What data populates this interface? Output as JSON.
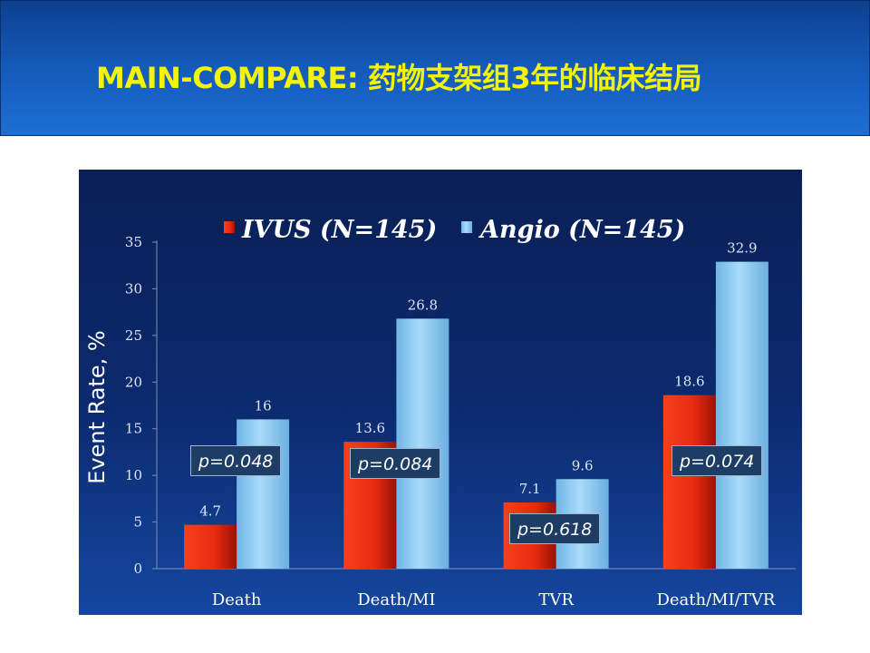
{
  "header": {
    "title": "MAIN-COMPARE: 药物支架组3年的临床结局"
  },
  "colors": {
    "ivus": "#e62a12",
    "angio": "#7fc4ee",
    "title": "#f4f400"
  },
  "chart_data": {
    "type": "bar",
    "categories": [
      "Death",
      "Death/MI",
      "TVR",
      "Death/MI/TVR"
    ],
    "series": [
      {
        "name": "IVUS (N=145)",
        "values": [
          4.7,
          13.6,
          7.1,
          18.6
        ]
      },
      {
        "name": "Angio (N=145)",
        "values": [
          16,
          26.8,
          9.6,
          32.9
        ]
      }
    ],
    "value_labels": [
      [
        "4.7",
        "13.6",
        "7.1",
        "18.6"
      ],
      [
        "16",
        "26.8",
        "9.6",
        "32.9"
      ]
    ],
    "p_values": [
      "p=0.048",
      "p=0.084",
      "p=0.618",
      "p=0.074"
    ],
    "ylabel": "Event Rate, %",
    "xlabel": "",
    "ylim": [
      0,
      35
    ],
    "yticks": [
      "0",
      "5",
      "10",
      "15",
      "20",
      "25",
      "30",
      "35"
    ],
    "legend": "top",
    "grid": false
  }
}
